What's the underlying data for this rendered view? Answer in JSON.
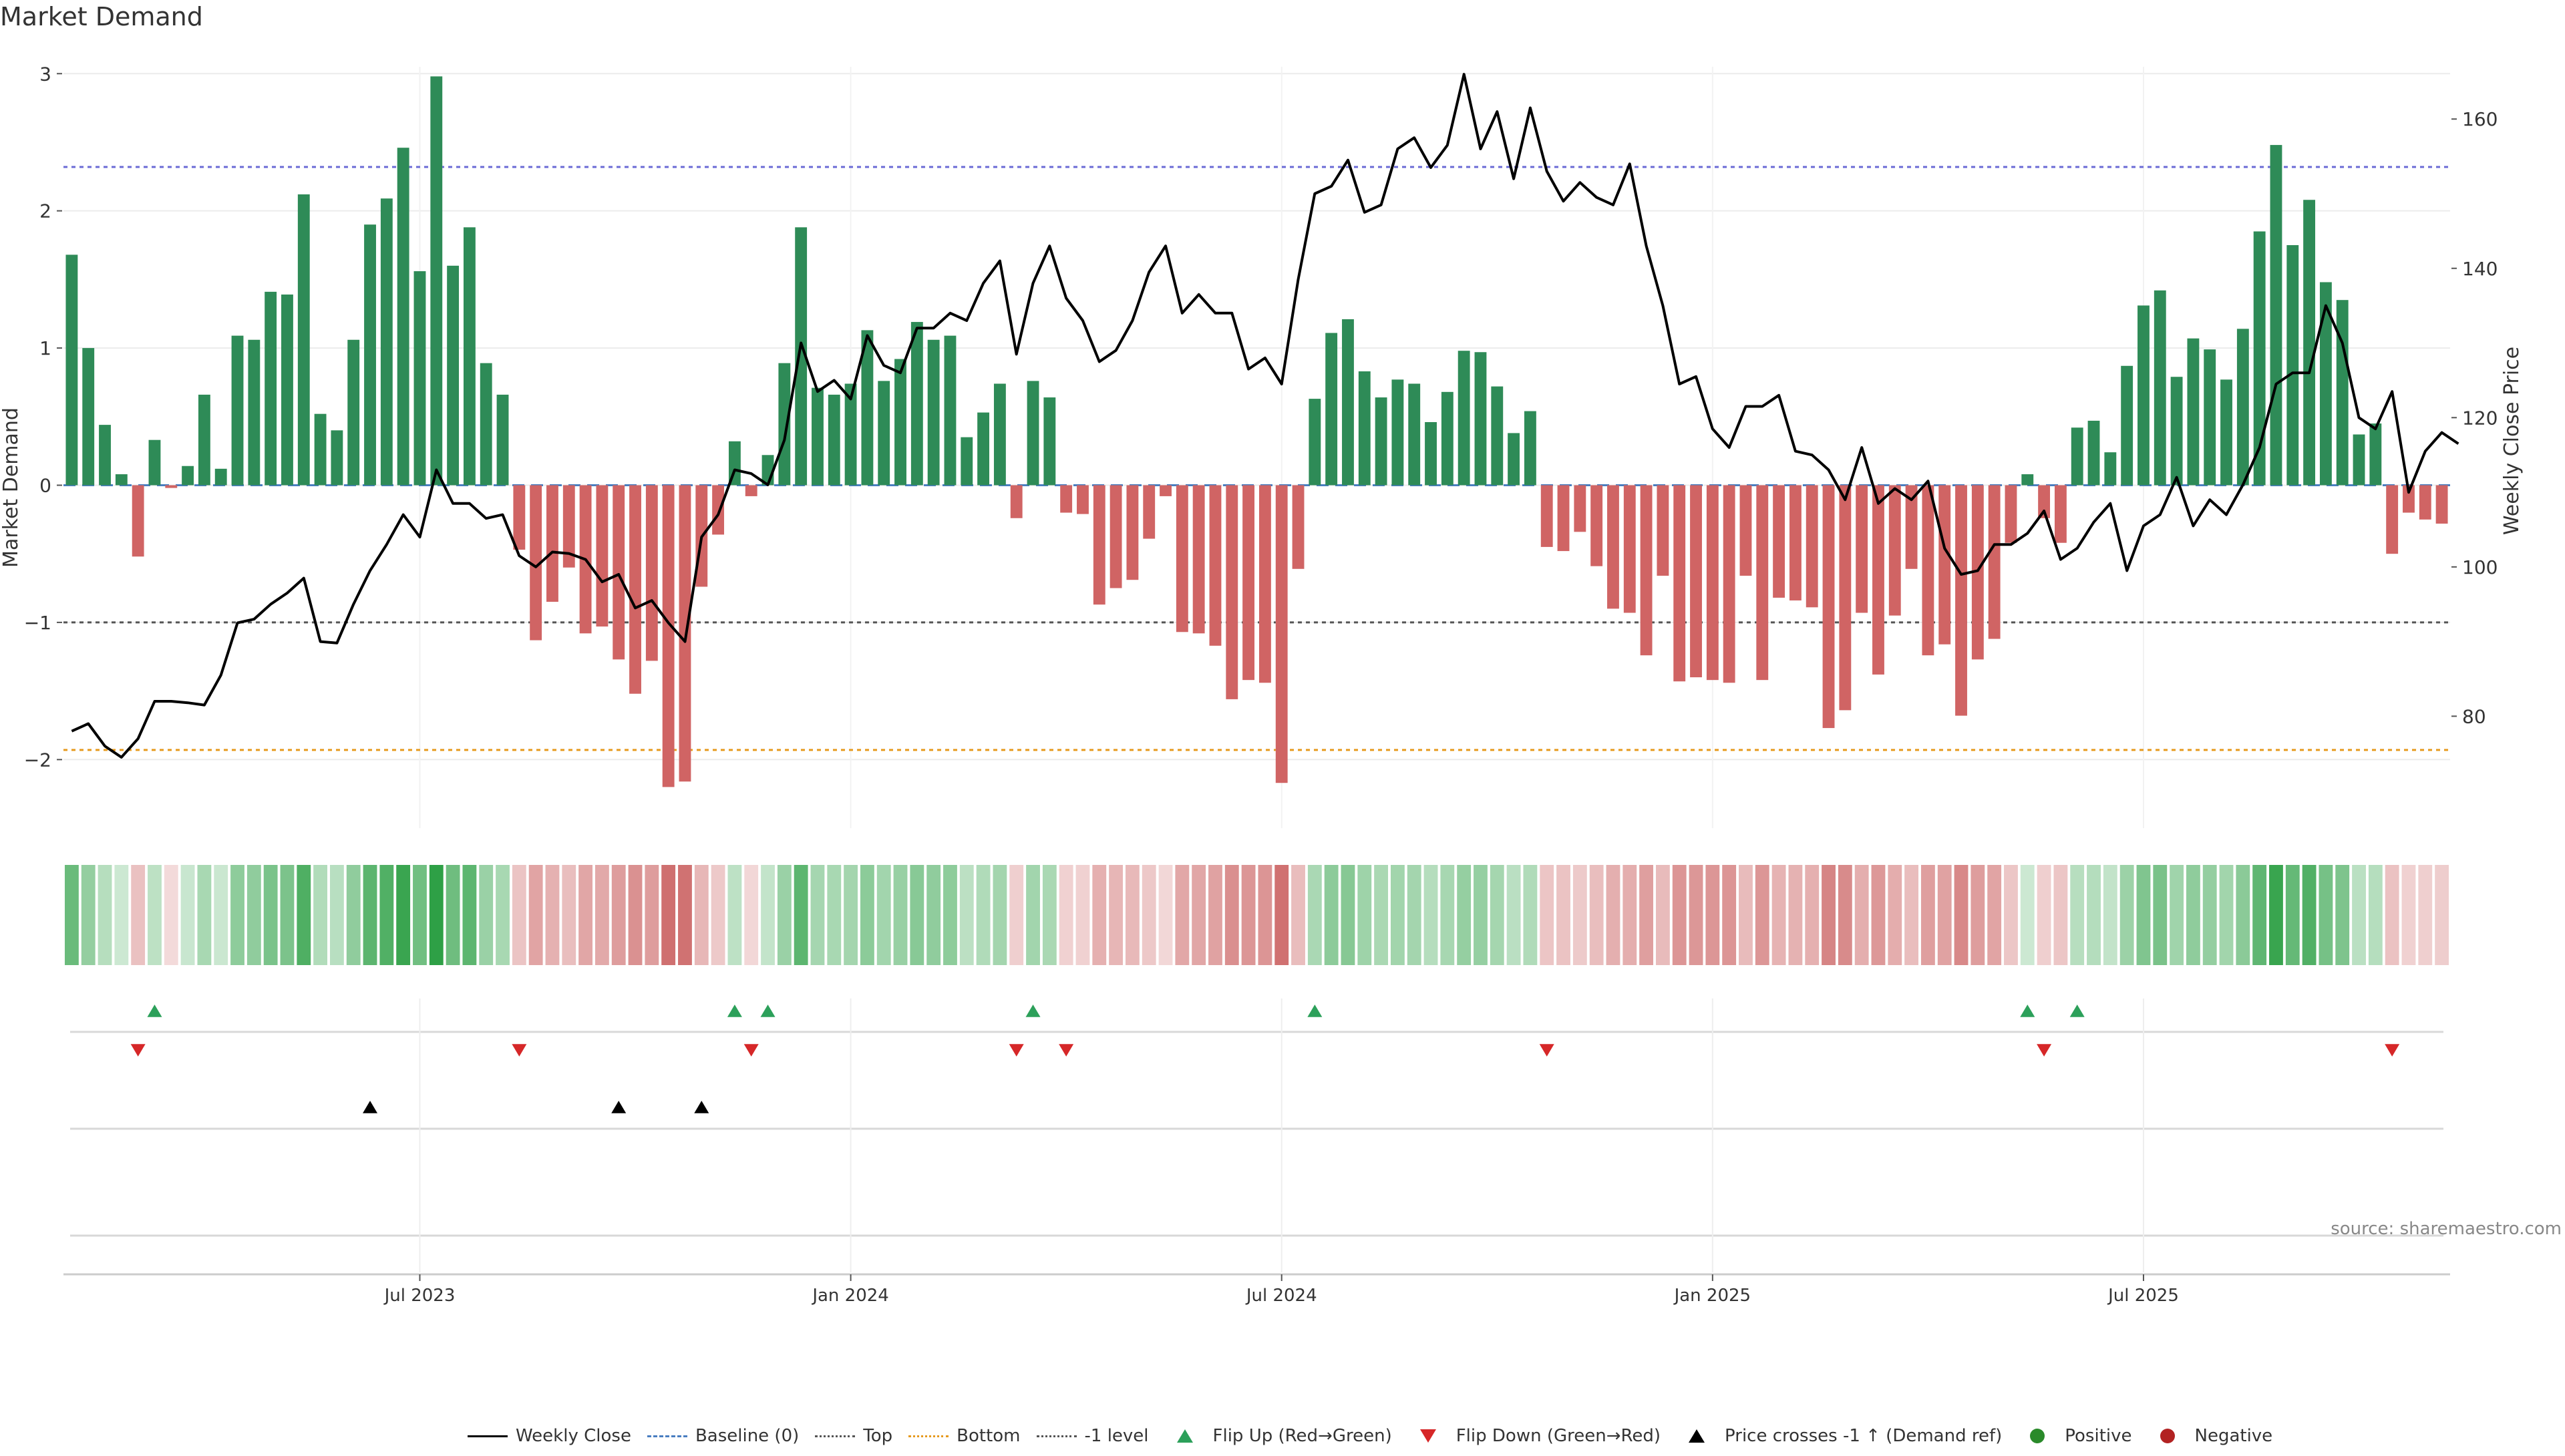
{
  "chart_data": {
    "type": "bar",
    "title": "Market Demand",
    "ylabel": "Market Demand",
    "y2label": "Weekly Close Price",
    "ylim": [
      -2.5,
      3.05
    ],
    "y2lim": [
      65,
      167
    ],
    "yticks": [
      -2,
      -1,
      0,
      1,
      2,
      3
    ],
    "y2ticks": [
      80,
      100,
      120,
      140,
      160
    ],
    "reference_lines": {
      "top": 2.32,
      "bottom": -1.93,
      "minus_one": -1.0,
      "baseline": 0
    },
    "x_tick_labels": [
      {
        "label": "Jul 2023",
        "week": 21.5
      },
      {
        "label": "Jan 2024",
        "week": 47.5
      },
      {
        "label": "Jul 2024",
        "week": 73.5
      },
      {
        "label": "Jan 2025",
        "week": 99.5
      },
      {
        "label": "Jul 2025",
        "week": 125.5
      }
    ],
    "demand": [
      1.68,
      1.0,
      0.44,
      0.08,
      -0.52,
      0.33,
      -0.02,
      0.14,
      0.66,
      0.12,
      1.09,
      1.06,
      1.41,
      1.39,
      2.12,
      0.52,
      0.4,
      1.06,
      1.9,
      2.09,
      2.46,
      1.56,
      2.98,
      1.6,
      1.88,
      0.89,
      0.66,
      -0.47,
      -1.13,
      -0.85,
      -0.6,
      -1.08,
      -1.03,
      -1.27,
      -1.52,
      -1.28,
      -2.2,
      -2.16,
      -0.74,
      -0.36,
      0.32,
      -0.08,
      0.22,
      0.89,
      1.88,
      0.71,
      0.66,
      0.74,
      1.13,
      0.76,
      0.92,
      1.19,
      1.06,
      1.09,
      0.35,
      0.53,
      0.74,
      -0.24,
      0.76,
      0.64,
      -0.2,
      -0.21,
      -0.87,
      -0.75,
      -0.69,
      -0.39,
      -0.08,
      -1.07,
      -1.08,
      -1.17,
      -1.56,
      -1.42,
      -1.44,
      -2.17,
      -0.61,
      0.63,
      1.11,
      1.21,
      0.83,
      0.64,
      0.77,
      0.74,
      0.46,
      0.68,
      0.98,
      0.97,
      0.72,
      0.38,
      0.54,
      -0.45,
      -0.48,
      -0.34,
      -0.59,
      -0.9,
      -0.93,
      -1.24,
      -0.66,
      -1.43,
      -1.4,
      -1.42,
      -1.44,
      -0.66,
      -1.42,
      -0.82,
      -0.84,
      -0.89,
      -1.77,
      -1.64,
      -0.93,
      -1.38,
      -0.95,
      -0.61,
      -1.24,
      -1.16,
      -1.68,
      -1.27,
      -1.12,
      -0.42,
      0.08,
      -0.24,
      -0.42,
      0.42,
      0.47,
      0.24,
      0.87,
      1.31,
      1.42,
      0.79,
      1.07,
      0.99,
      0.77,
      1.14,
      1.85,
      2.48,
      1.75,
      2.08,
      1.48,
      1.35,
      0.37,
      0.45,
      -0.5,
      -0.2,
      -0.25,
      -0.28
    ],
    "weekly_close": [
      78,
      79,
      76,
      74.5,
      77,
      82,
      82,
      81.8,
      81.5,
      85.5,
      92.5,
      93,
      95,
      96.5,
      98.5,
      90,
      89.8,
      95,
      99.5,
      103,
      107,
      104,
      113,
      108.5,
      108.5,
      106.5,
      107,
      101.5,
      100,
      102,
      101.8,
      101,
      98,
      99,
      94.5,
      95.5,
      92.5,
      90,
      104,
      107,
      113,
      112.5,
      111,
      117,
      130,
      123.5,
      125,
      122.5,
      131,
      127,
      126,
      132,
      132,
      134,
      133,
      138,
      141,
      128.5,
      138,
      143,
      136,
      133,
      127.5,
      129,
      133,
      139.5,
      143,
      134,
      136.5,
      134,
      134,
      126.5,
      128,
      124.5,
      138.5,
      150,
      151,
      154.5,
      147.5,
      148.5,
      156,
      157.5,
      153.5,
      156.5,
      166,
      156,
      161,
      152,
      161.5,
      153,
      149,
      151.5,
      149.5,
      148.5,
      154,
      143,
      135,
      124.5,
      125.5,
      118.5,
      116,
      121.5,
      121.5,
      123,
      115.5,
      115,
      113,
      109,
      116,
      108.5,
      110.5,
      109,
      111.5,
      102.5,
      99,
      99.5,
      103,
      103,
      104.5,
      107.5,
      101,
      102.5,
      106,
      108.5,
      99.5,
      105.5,
      107,
      112,
      105.5,
      109,
      107,
      111,
      116,
      124.5,
      126,
      126,
      135,
      130,
      120,
      118.5,
      123.5,
      110,
      115.5,
      118,
      116.5
    ],
    "flip_up_weeks": [
      5,
      40,
      42,
      58,
      75,
      118,
      121
    ],
    "flip_down_weeks": [
      4,
      27,
      41,
      57,
      60,
      89,
      119,
      140
    ],
    "price_cross_weeks": [
      18,
      33,
      38
    ],
    "legend": [
      "Weekly Close",
      "Baseline (0)",
      "Top",
      "Bottom",
      "-1 level",
      "Flip Up (Red→Green)",
      "Flip Down (Green→Red)",
      "Price crosses -1 ↑ (Demand ref)",
      "Positive",
      "Negative"
    ],
    "source": "source: sharemaestro.com"
  },
  "colors": {
    "positive": "#2e8b57",
    "negative": "#d06464",
    "price": "#000000",
    "top_line": "#6b6bd6",
    "bottom_line": "#e69a1f",
    "minus_one_line": "#555555",
    "flip_up": "#2ca05a",
    "flip_down": "#d62728",
    "positive_dot": "#2a8a2a",
    "negative_dot": "#b22222"
  }
}
